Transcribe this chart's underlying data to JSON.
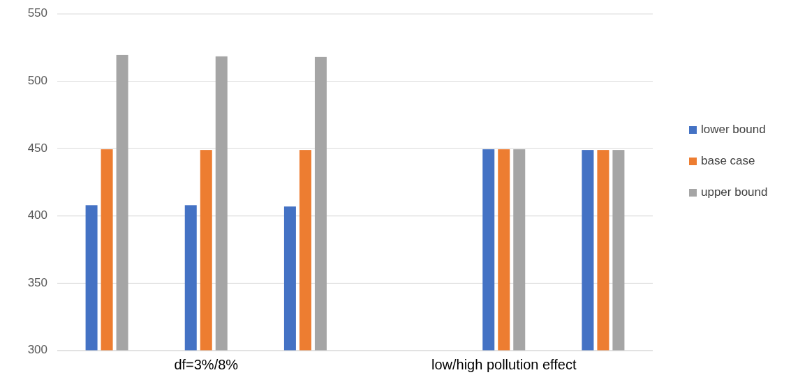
{
  "chart_data": {
    "type": "bar",
    "categories": [
      null,
      "df=3%/8%",
      null,
      null,
      "low/high pollution effect",
      null
    ],
    "series": [
      {
        "name": "lower bound",
        "color": "#4472c4",
        "values": [
          408,
          408,
          407,
          null,
          449.5,
          449
        ]
      },
      {
        "name": "base case",
        "color": "#ed7d31",
        "values": [
          449.5,
          449,
          449,
          null,
          449.5,
          449
        ]
      },
      {
        "name": "upper bound",
        "color": "#a5a5a5",
        "values": [
          519.5,
          518.5,
          518,
          null,
          449.5,
          449
        ]
      }
    ],
    "ylim": [
      300,
      550
    ],
    "yticks": [
      300,
      350,
      400,
      450,
      500,
      550
    ],
    "grid": "y",
    "legend": "right"
  }
}
